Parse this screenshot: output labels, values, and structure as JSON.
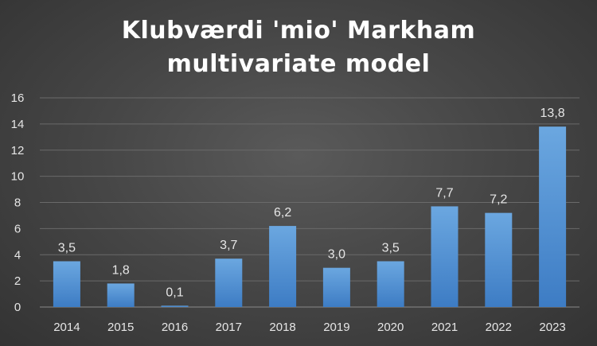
{
  "chart_data": {
    "type": "bar",
    "title_lines": [
      "Klubværdi 'mio' Markham",
      "multivariate model"
    ],
    "categories": [
      "2014",
      "2015",
      "2016",
      "2017",
      "2018",
      "2019",
      "2020",
      "2021",
      "2022",
      "2023"
    ],
    "values": [
      3.5,
      1.8,
      0.1,
      3.7,
      6.2,
      3.0,
      3.5,
      7.7,
      7.2,
      13.8
    ],
    "data_labels": [
      "3,5",
      "1,8",
      "0,1",
      "3,7",
      "6,2",
      "3,0",
      "3,5",
      "7,7",
      "7,2",
      "13,8"
    ],
    "yticks": [
      "0",
      "2",
      "4",
      "6",
      "8",
      "10",
      "12",
      "14",
      "16"
    ],
    "ylim": [
      0,
      16
    ],
    "xlabel": "",
    "ylabel": "",
    "grid": true,
    "legend": "none",
    "colors": {
      "bar_top": "#6ba7e0",
      "bar_bottom": "#3d7cc4",
      "grid": "#6a6a6a",
      "text": "#e6e6e6"
    }
  }
}
